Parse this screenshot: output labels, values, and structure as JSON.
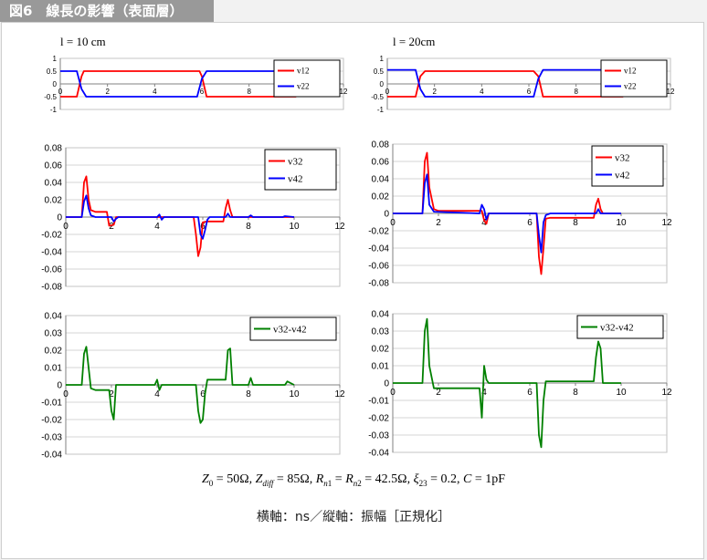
{
  "figure_title": "図6　線長の影響（表面層）",
  "caption": "横軸：ns／縦軸：振幅［正規化］",
  "formula": {
    "z0": "50Ω",
    "zdiff": "85Ω",
    "rn1_rn2": "42.5Ω",
    "xi23": "0.2",
    "c": "1pF"
  },
  "colors": {
    "v12": "#ff0000",
    "v22": "#0000ff",
    "v32": "#ff0000",
    "v42": "#0000ff",
    "diff": "#008000"
  },
  "chart_data": [
    {
      "type": "line",
      "title": "l = 10 cm",
      "xlim": [
        0,
        12
      ],
      "ylim": [
        -1,
        1
      ],
      "xticks": [
        "0",
        "2",
        "4",
        "6",
        "8",
        "10",
        "12"
      ],
      "yticks": [
        "1",
        "0.5",
        "0",
        "-0.5",
        "-1"
      ],
      "legend": "top-right",
      "series": [
        {
          "name": "v12",
          "color": "#ff0000",
          "x": [
            0,
            0.7,
            0.9,
            1.0,
            5.9,
            6.0,
            6.2,
            10
          ],
          "y": [
            -0.5,
            -0.5,
            0.3,
            0.5,
            0.5,
            0.3,
            -0.5,
            -0.5
          ]
        },
        {
          "name": "v22",
          "color": "#0000ff",
          "x": [
            0,
            0.7,
            0.9,
            1.1,
            5.8,
            6.0,
            6.2,
            10
          ],
          "y": [
            0.5,
            0.5,
            -0.2,
            -0.5,
            -0.5,
            0.2,
            0.5,
            0.5
          ]
        }
      ]
    },
    {
      "type": "line",
      "title": "l = 20cm",
      "xlim": [
        0,
        12
      ],
      "ylim": [
        -1,
        1
      ],
      "xticks": [
        "0",
        "2",
        "4",
        "6",
        "8",
        "10",
        "12"
      ],
      "yticks": [
        "1",
        "0.5",
        "0",
        "-0.5",
        "-1"
      ],
      "legend": "top-right",
      "series": [
        {
          "name": "v12",
          "color": "#ff0000",
          "x": [
            0,
            1.2,
            1.4,
            1.6,
            6.2,
            6.4,
            6.6,
            10
          ],
          "y": [
            -0.5,
            -0.5,
            0.3,
            0.5,
            0.5,
            0.3,
            -0.5,
            -0.5
          ]
        },
        {
          "name": "v22",
          "color": "#0000ff",
          "x": [
            0,
            1.2,
            1.4,
            1.6,
            6.2,
            6.4,
            6.6,
            10
          ],
          "y": [
            0.55,
            0.55,
            -0.2,
            -0.5,
            -0.5,
            0.2,
            0.55,
            0.55
          ]
        }
      ]
    },
    {
      "type": "line",
      "xlim": [
        0,
        12
      ],
      "ylim": [
        -0.08,
        0.08
      ],
      "xticks": [
        "0",
        "2",
        "4",
        "6",
        "8",
        "10",
        "12"
      ],
      "yticks": [
        "0.08",
        "0.06",
        "0.04",
        "0.02",
        "0",
        "-0.02",
        "-0.04",
        "-0.06",
        "-0.08"
      ],
      "legend": "top-right",
      "series": [
        {
          "name": "v32",
          "color": "#ff0000",
          "x": [
            0,
            0.7,
            0.8,
            0.9,
            1.0,
            1.1,
            1.3,
            1.8,
            1.9,
            2.1,
            2.2,
            2.3,
            5.6,
            5.7,
            5.8,
            5.9,
            6.0,
            6.2,
            6.9,
            7.0,
            7.1,
            7.2,
            7.3,
            10
          ],
          "y": [
            0,
            0,
            0.04,
            0.047,
            0.02,
            0.008,
            0.006,
            0.006,
            -0.01,
            -0.009,
            0,
            0,
            0,
            -0.02,
            -0.045,
            -0.035,
            -0.006,
            -0.005,
            -0.005,
            0.01,
            0.02,
            0.008,
            0,
            0
          ]
        },
        {
          "name": "v42",
          "color": "#0000ff",
          "x": [
            0,
            0.7,
            0.8,
            0.9,
            1.0,
            1.1,
            1.3,
            2.0,
            2.1,
            2.2,
            2.3,
            4.0,
            4.1,
            4.2,
            4.3,
            5.8,
            5.9,
            6.0,
            6.1,
            6.2,
            6.3,
            7.0,
            7.1,
            7.2,
            8.0,
            8.1,
            8.2,
            9.5,
            9.6,
            10
          ],
          "y": [
            0,
            0,
            0.018,
            0.025,
            0.01,
            0.002,
            0,
            0,
            -0.005,
            -0.002,
            0,
            0,
            0.003,
            -0.003,
            0,
            0,
            -0.02,
            -0.025,
            -0.015,
            -0.003,
            0,
            0,
            0.004,
            0,
            0,
            0.002,
            0,
            0,
            0.001,
            0
          ]
        }
      ]
    },
    {
      "type": "line",
      "xlim": [
        0,
        12
      ],
      "ylim": [
        -0.08,
        0.08
      ],
      "xticks": [
        "0",
        "2",
        "4",
        "6",
        "8",
        "10",
        "12"
      ],
      "yticks": [
        "0.08",
        "0.06",
        "0.04",
        "0.02",
        "0",
        "-0.02",
        "-0.04",
        "-0.06",
        "-0.08"
      ],
      "legend": "top-right",
      "series": [
        {
          "name": "v32",
          "color": "#ff0000",
          "x": [
            0,
            1.3,
            1.4,
            1.5,
            1.6,
            1.8,
            2.0,
            3.9,
            4.0,
            4.1,
            4.2,
            6.3,
            6.4,
            6.5,
            6.6,
            6.7,
            6.9,
            8.8,
            8.9,
            9.0,
            9.1,
            9.2,
            10
          ],
          "y": [
            0,
            0,
            0.06,
            0.07,
            0.03,
            0.005,
            0.003,
            0.003,
            -0.008,
            -0.012,
            0,
            0,
            -0.05,
            -0.07,
            -0.04,
            -0.006,
            -0.005,
            -0.005,
            0.01,
            0.017,
            0.005,
            0,
            0
          ]
        },
        {
          "name": "v42",
          "color": "#0000ff",
          "x": [
            0,
            1.3,
            1.4,
            1.5,
            1.6,
            1.8,
            3.8,
            3.9,
            4.0,
            4.1,
            4.2,
            6.3,
            6.4,
            6.5,
            6.6,
            6.7,
            6.9,
            8.9,
            9.0,
            9.1,
            10
          ],
          "y": [
            0,
            0,
            0.035,
            0.045,
            0.01,
            0.002,
            0,
            0.01,
            0.005,
            -0.007,
            0,
            0,
            -0.025,
            -0.045,
            -0.01,
            -0.002,
            0,
            0,
            0.005,
            0,
            0
          ]
        }
      ]
    },
    {
      "type": "line",
      "xlim": [
        0,
        12
      ],
      "ylim": [
        -0.04,
        0.04
      ],
      "xticks": [
        "0",
        "2",
        "4",
        "6",
        "8",
        "10",
        "12"
      ],
      "yticks": [
        "0.04",
        "0.03",
        "0.02",
        "0.01",
        "0",
        "-0.01",
        "-0.02",
        "-0.03",
        "-0.04"
      ],
      "legend": "top-right",
      "series": [
        {
          "name": "v32-v42",
          "color": "#008000",
          "x": [
            0,
            0.7,
            0.8,
            0.9,
            1.0,
            1.1,
            1.3,
            1.9,
            2.0,
            2.1,
            2.2,
            3.9,
            4.0,
            4.1,
            4.2,
            5.7,
            5.8,
            5.9,
            6.0,
            6.1,
            6.2,
            7.0,
            7.1,
            7.2,
            7.3,
            8.0,
            8.1,
            8.2,
            9.6,
            9.7,
            10
          ],
          "y": [
            0,
            0,
            0.018,
            0.022,
            0.01,
            -0.002,
            -0.003,
            -0.003,
            -0.015,
            -0.02,
            0,
            0,
            0.003,
            -0.003,
            0,
            0,
            -0.015,
            -0.022,
            -0.02,
            -0.005,
            0.003,
            0.003,
            0.02,
            0.021,
            0,
            0,
            0.004,
            0,
            0,
            0.002,
            0
          ]
        }
      ]
    },
    {
      "type": "line",
      "xlim": [
        0,
        12
      ],
      "ylim": [
        -0.04,
        0.04
      ],
      "xticks": [
        "0",
        "2",
        "4",
        "6",
        "8",
        "10",
        "12"
      ],
      "yticks": [
        "0.04",
        "0.03",
        "0.02",
        "0.01",
        "0",
        "-0.01",
        "-0.02",
        "-0.03",
        "-0.04"
      ],
      "legend": "top-right",
      "series": [
        {
          "name": "v32-v42",
          "color": "#008000",
          "x": [
            0,
            1.3,
            1.4,
            1.5,
            1.6,
            1.8,
            3.8,
            3.9,
            4.0,
            4.1,
            4.2,
            6.3,
            6.4,
            6.5,
            6.6,
            6.7,
            6.9,
            8.8,
            8.9,
            9.0,
            9.1,
            9.2,
            10
          ],
          "y": [
            0,
            0,
            0.03,
            0.037,
            0.01,
            -0.003,
            -0.003,
            -0.02,
            0.01,
            0.002,
            0,
            0,
            -0.03,
            -0.037,
            -0.01,
            0.001,
            0.001,
            0.001,
            0.015,
            0.024,
            0.02,
            0,
            0
          ]
        }
      ]
    }
  ]
}
